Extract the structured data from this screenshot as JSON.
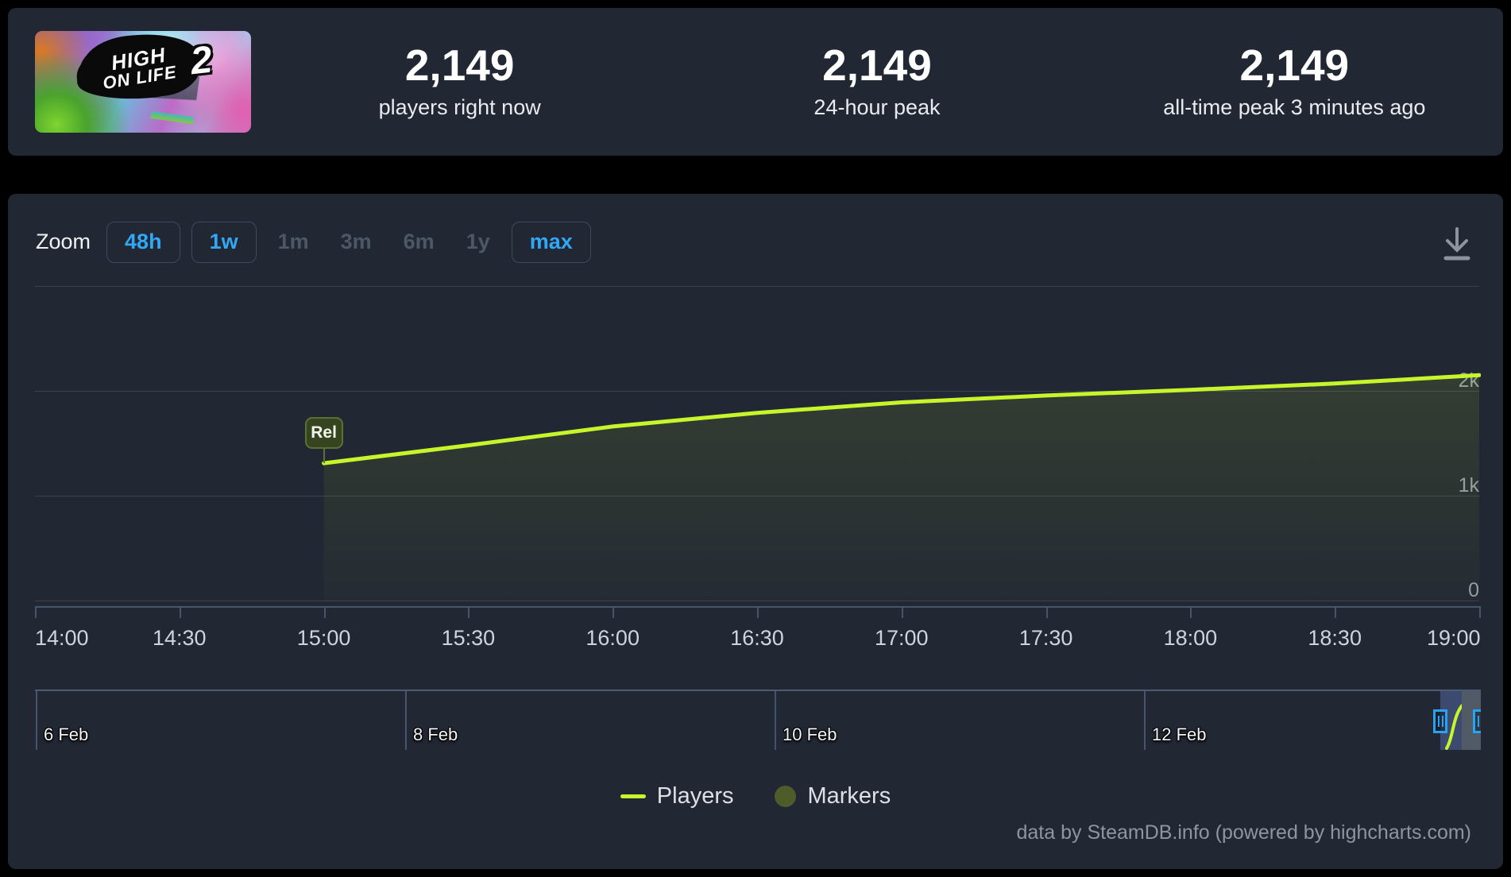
{
  "header": {
    "game_title": "High On Life 2",
    "banner_logo": {
      "line1": "HIGH",
      "line2": "ON LIFE",
      "number": "2"
    },
    "stats": [
      {
        "value": "2,149",
        "label": "players right now"
      },
      {
        "value": "2,149",
        "label": "24-hour peak"
      },
      {
        "value": "2,149",
        "label": "all-time peak 3 minutes ago"
      }
    ]
  },
  "toolbar": {
    "zoom_label": "Zoom",
    "buttons": [
      {
        "label": "48h",
        "boxed": true
      },
      {
        "label": "1w",
        "boxed": true
      },
      {
        "label": "1m",
        "boxed": false
      },
      {
        "label": "3m",
        "boxed": false
      },
      {
        "label": "6m",
        "boxed": false
      },
      {
        "label": "1y",
        "boxed": false
      },
      {
        "label": "max",
        "boxed": true
      }
    ],
    "download_icon": "download-icon"
  },
  "chart_data": {
    "type": "line",
    "title": "",
    "series": [
      {
        "name": "Players",
        "color": "#c7f52b",
        "x": [
          "15:00",
          "15:30",
          "16:00",
          "16:30",
          "17:00",
          "17:30",
          "18:00",
          "18:30",
          "19:00"
        ],
        "values": [
          1310,
          1480,
          1660,
          1790,
          1890,
          1955,
          2010,
          2070,
          2149
        ]
      }
    ],
    "annotation": {
      "label": "Rel",
      "x": "15:00",
      "value": 1310
    },
    "x_axis": {
      "ticks": [
        "14:00",
        "14:30",
        "15:00",
        "15:30",
        "16:00",
        "16:30",
        "17:00",
        "17:30",
        "18:00",
        "18:30",
        "19:00"
      ]
    },
    "y_axis": {
      "max": 3000,
      "ticks": [
        {
          "value": 2000,
          "label": "2k"
        },
        {
          "value": 1000,
          "label": "1k"
        },
        {
          "value": 0,
          "label": "0"
        }
      ]
    },
    "grid": true,
    "legend_position": "bottom",
    "navigator": {
      "dates": [
        "6 Feb",
        "8 Feb",
        "10 Feb",
        "12 Feb"
      ],
      "selection": "right-end"
    }
  },
  "legend": {
    "items": [
      {
        "label": "Players",
        "swatch": "line",
        "color": "#c7f52b"
      },
      {
        "label": "Markers",
        "swatch": "circle",
        "color": "#4e5c2a"
      }
    ]
  },
  "footer": {
    "credit": "data by SteamDB.info (powered by highcharts.com)"
  },
  "colors": {
    "accent_blue": "#31a7f5",
    "line": "#c7f52b",
    "panel": "#212733",
    "background": "#000000"
  }
}
